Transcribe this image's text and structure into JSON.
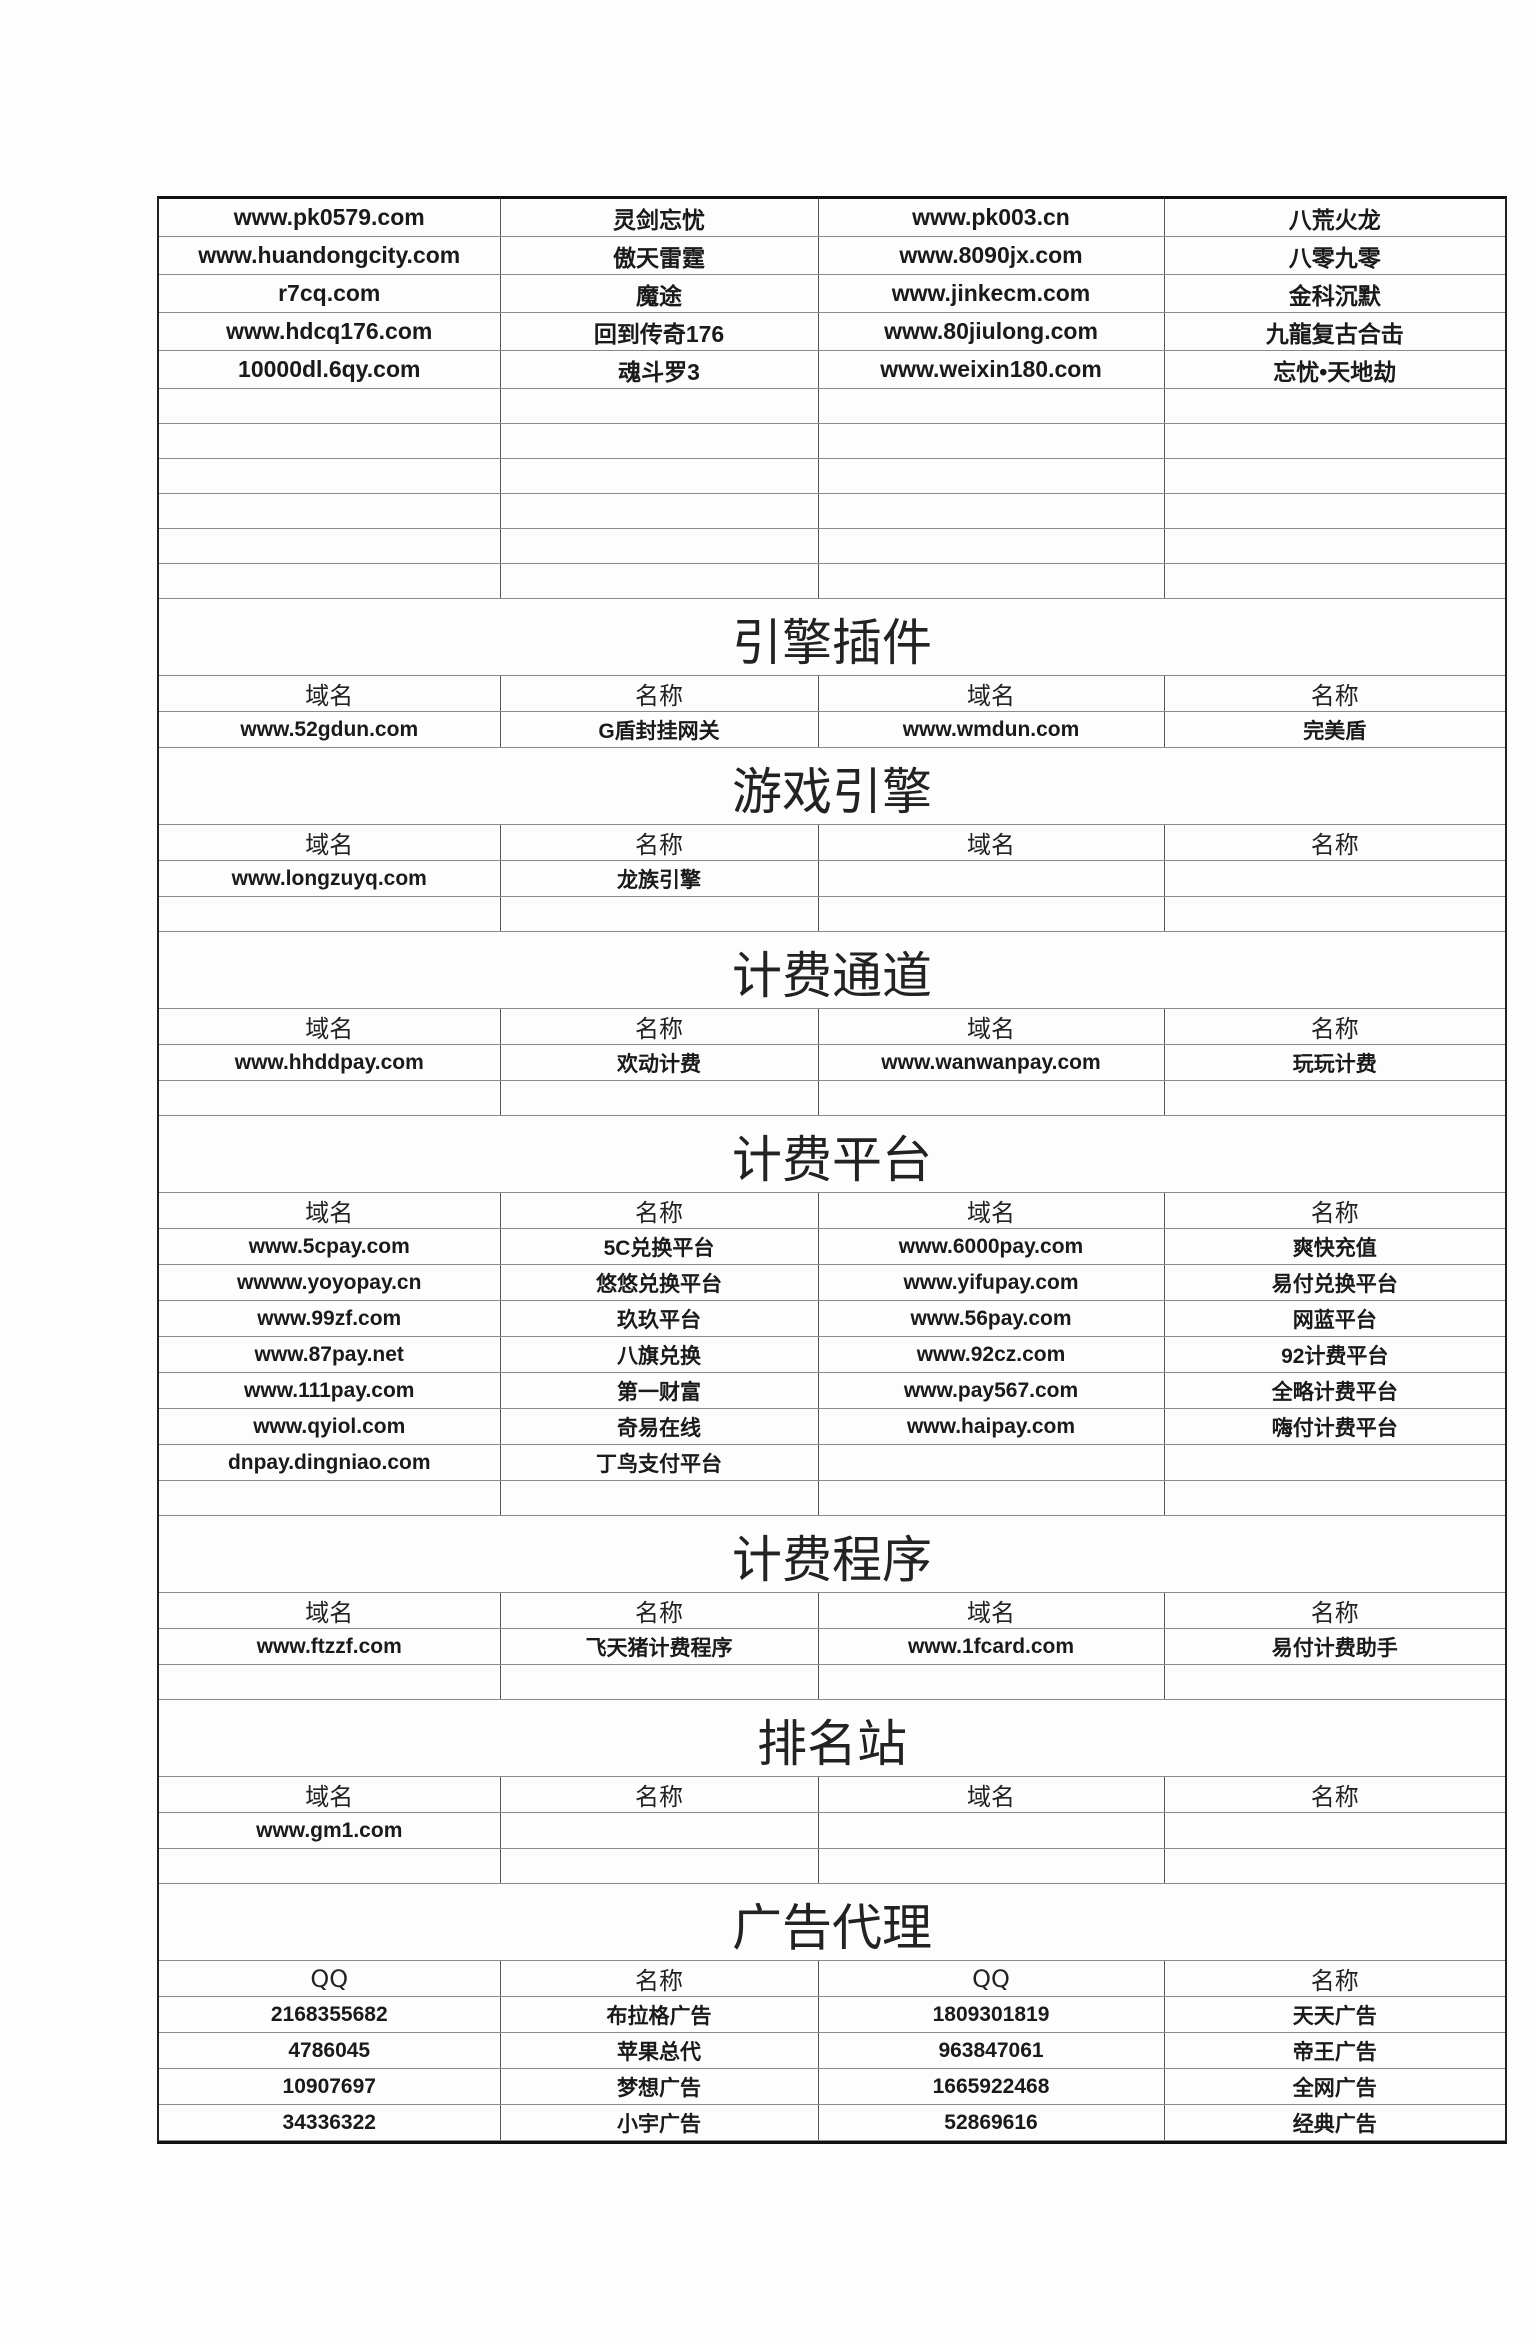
{
  "sections": [
    {
      "title": "",
      "headers": [],
      "rows": [
        [
          "www.pk0579.com",
          "灵剑忘忧",
          "www.pk003.cn",
          "八荒火龙"
        ],
        [
          "www.huandongcity.com",
          "傲天雷霆",
          "www.8090jx.com",
          "八零九零"
        ],
        [
          "r7cq.com",
          "魔途",
          "www.jinkecm.com",
          "金科沉默"
        ],
        [
          "www.hdcq176.com",
          "回到传奇176",
          "www.80jiulong.com",
          "九龍复古合击"
        ],
        [
          "10000dl.6qy.com",
          "魂斗罗3",
          "www.weixin180.com",
          "忘忧•天地劫"
        ]
      ]
    },
    {
      "title": "引擎插件",
      "headers": [
        "域名",
        "名称",
        "域名",
        "名称"
      ],
      "rows": [
        [
          "www.52gdun.com",
          "G盾封挂网关",
          "www.wmdun.com",
          "完美盾"
        ]
      ]
    },
    {
      "title": "游戏引擎",
      "headers": [
        "域名",
        "名称",
        "域名",
        "名称"
      ],
      "rows": [
        [
          "www.longzuyq.com",
          "龙族引擎",
          "",
          ""
        ]
      ]
    },
    {
      "title": "计费通道",
      "headers": [
        "域名",
        "名称",
        "域名",
        "名称"
      ],
      "rows": [
        [
          "www.hhddpay.com",
          "欢动计费",
          "www.wanwanpay.com",
          "玩玩计费"
        ]
      ]
    },
    {
      "title": "计费平台",
      "headers": [
        "域名",
        "名称",
        "域名",
        "名称"
      ],
      "rows": [
        [
          "www.5cpay.com",
          "5C兑换平台",
          "www.6000pay.com",
          "爽快充值"
        ],
        [
          "wwww.yoyopay.cn",
          "悠悠兑换平台",
          "www.yifupay.com",
          "易付兑换平台"
        ],
        [
          "www.99zf.com",
          "玖玖平台",
          "www.56pay.com",
          "网蓝平台"
        ],
        [
          "www.87pay.net",
          "八旗兑换",
          "www.92cz.com",
          "92计费平台"
        ],
        [
          "www.111pay.com",
          "第一财富",
          "www.pay567.com",
          "全略计费平台"
        ],
        [
          "www.qyiol.com",
          "奇易在线",
          "www.haipay.com",
          "嗨付计费平台"
        ],
        [
          "dnpay.dingniao.com",
          "丁鸟支付平台",
          "",
          ""
        ]
      ]
    },
    {
      "title": "计费程序",
      "headers": [
        "域名",
        "名称",
        "域名",
        "名称"
      ],
      "rows": [
        [
          "www.ftzzf.com",
          "飞天猪计费程序",
          "www.1fcard.com",
          "易付计费助手"
        ]
      ]
    },
    {
      "title": "排名站",
      "headers": [
        "域名",
        "名称",
        "域名",
        "名称"
      ],
      "rows": [
        [
          "www.gm1.com",
          "",
          "",
          ""
        ]
      ]
    },
    {
      "title": "广告代理",
      "headers": [
        "QQ",
        "名称",
        "QQ",
        "名称"
      ],
      "rows": [
        [
          "2168355682",
          "布拉格广告",
          "1809301819",
          "天天广告"
        ],
        [
          "4786045",
          "苹果总代",
          "963847061",
          "帝王广告"
        ],
        [
          "10907697",
          "梦想广告",
          "1665922468",
          "全网广告"
        ],
        [
          "34336322",
          "小宇广告",
          "52869616",
          "经典广告"
        ]
      ]
    }
  ]
}
